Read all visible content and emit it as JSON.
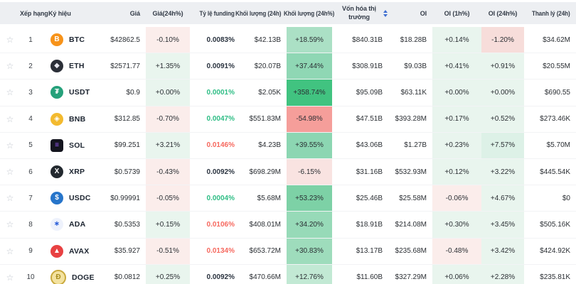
{
  "header": {
    "columns": [
      {
        "label": ""
      },
      {
        "label": "Xếp hạng"
      },
      {
        "label": "Ký hiệu"
      },
      {
        "label": "Giá"
      },
      {
        "label": "Giá(24h%)"
      },
      {
        "label": "Tỷ lệ funding"
      },
      {
        "label": "Khối lượng (24h)"
      },
      {
        "label": "Khối lượng (24h%)"
      },
      {
        "label": "Vốn hóa thị trường"
      },
      {
        "label": "OI"
      },
      {
        "label": "OI (1h%)"
      },
      {
        "label": "OI (24h%)"
      },
      {
        "label": "Thanh lý (24h)"
      }
    ],
    "sorted_column": "Vốn hóa thị trường"
  },
  "icons": {
    "favorite": "☆",
    "sort": "sort-arrows"
  },
  "colors": {
    "header_bg": "#edeff2",
    "tint_green": "#e9f5ee",
    "tint_red": "#fbedeb",
    "funding_green": "#2ebd85",
    "funding_red": "#f6685e",
    "funding_neutral": "#2b3440",
    "strong_green": "#41c380",
    "strong_red": "#f59e9a"
  },
  "rows": [
    {
      "rank": "1",
      "symbol": "BTC",
      "icon": {
        "name": "btc-icon",
        "glyph": "B",
        "bg": "#f7931a",
        "fg": "#ffffff"
      },
      "price": "$42862.5",
      "chg24h": {
        "text": "-0.10%",
        "bg": "#fbedeb"
      },
      "funding": {
        "text": "0.0083%",
        "color": "#2b3440"
      },
      "vol24h": "$42.13B",
      "vol24hPct": {
        "text": "+18.59%",
        "bg": "#abe0c5"
      },
      "mktcap": "$840.31B",
      "oi": "$18.28B",
      "oi1h": {
        "text": "+0.14%",
        "bg": "#e9f5ee"
      },
      "oi24h": {
        "text": "-1.20%",
        "bg": "#f7ddda"
      },
      "liq": "$34.62M"
    },
    {
      "rank": "2",
      "symbol": "ETH",
      "icon": {
        "name": "eth-icon",
        "glyph": "◆",
        "bg": "#2b2f38",
        "fg": "#e8e8f0"
      },
      "price": "$2571.77",
      "chg24h": {
        "text": "+1.35%",
        "bg": "#e9f5ee"
      },
      "funding": {
        "text": "0.0091%",
        "color": "#2b3440"
      },
      "vol24h": "$20.07B",
      "vol24hPct": {
        "text": "+37.44%",
        "bg": "#8fd7b4"
      },
      "mktcap": "$308.91B",
      "oi": "$9.03B",
      "oi1h": {
        "text": "+0.41%",
        "bg": "#e9f5ee"
      },
      "oi24h": {
        "text": "+0.91%",
        "bg": "#e9f5ee"
      },
      "liq": "$20.55M"
    },
    {
      "rank": "3",
      "symbol": "USDT",
      "icon": {
        "name": "usdt-icon",
        "glyph": "₮",
        "bg": "#26a17b",
        "fg": "#ffffff"
      },
      "price": "$0.9",
      "chg24h": {
        "text": "+0.00%",
        "bg": "#e9f5ee"
      },
      "funding": {
        "text": "0.0001%",
        "color": "#2ebd85"
      },
      "vol24h": "$2.05K",
      "vol24hPct": {
        "text": "+358.74%",
        "bg": "#41c380"
      },
      "mktcap": "$95.09B",
      "oi": "$63.11K",
      "oi1h": {
        "text": "+0.00%",
        "bg": "#e9f5ee"
      },
      "oi24h": {
        "text": "+0.00%",
        "bg": "#e9f5ee"
      },
      "liq": "$690.55"
    },
    {
      "rank": "4",
      "symbol": "BNB",
      "icon": {
        "name": "bnb-icon",
        "glyph": "◈",
        "bg": "#f3ba2f",
        "fg": "#ffffff"
      },
      "price": "$312.85",
      "chg24h": {
        "text": "-0.70%",
        "bg": "#fbedeb"
      },
      "funding": {
        "text": "0.0047%",
        "color": "#2ebd85"
      },
      "vol24h": "$551.83M",
      "vol24hPct": {
        "text": "-54.98%",
        "bg": "#f59e9a"
      },
      "mktcap": "$47.51B",
      "oi": "$393.28M",
      "oi1h": {
        "text": "+0.17%",
        "bg": "#e9f5ee"
      },
      "oi24h": {
        "text": "+0.52%",
        "bg": "#e9f5ee"
      },
      "liq": "$273.46K"
    },
    {
      "rank": "5",
      "symbol": "SOL",
      "icon": {
        "name": "sol-icon",
        "glyph": "≡",
        "bg": "#14151f",
        "fg": "#9d5cff",
        "shape": "square"
      },
      "price": "$99.251",
      "chg24h": {
        "text": "+3.21%",
        "bg": "#e9f5ee"
      },
      "funding": {
        "text": "0.0146%",
        "color": "#f6685e"
      },
      "vol24h": "$4.23B",
      "vol24hPct": {
        "text": "+39.55%",
        "bg": "#8cd6b2"
      },
      "mktcap": "$43.06B",
      "oi": "$1.27B",
      "oi1h": {
        "text": "+0.23%",
        "bg": "#e9f5ee"
      },
      "oi24h": {
        "text": "+7.57%",
        "bg": "#ddf1e7"
      },
      "liq": "$5.70M"
    },
    {
      "rank": "6",
      "symbol": "XRP",
      "icon": {
        "name": "xrp-icon",
        "glyph": "X",
        "bg": "#23292f",
        "fg": "#ffffff"
      },
      "price": "$0.5739",
      "chg24h": {
        "text": "-0.43%",
        "bg": "#fbedeb"
      },
      "funding": {
        "text": "0.0092%",
        "color": "#2b3440"
      },
      "vol24h": "$698.29M",
      "vol24hPct": {
        "text": "-6.15%",
        "bg": "#f9e3e1"
      },
      "mktcap": "$31.16B",
      "oi": "$532.93M",
      "oi1h": {
        "text": "+0.12%",
        "bg": "#e9f5ee"
      },
      "oi24h": {
        "text": "+3.22%",
        "bg": "#e9f5ee"
      },
      "liq": "$445.54K"
    },
    {
      "rank": "7",
      "symbol": "USDC",
      "icon": {
        "name": "usdc-icon",
        "glyph": "$",
        "bg": "#2775ca",
        "fg": "#ffffff"
      },
      "price": "$0.99991",
      "chg24h": {
        "text": "-0.05%",
        "bg": "#fbedeb"
      },
      "funding": {
        "text": "0.0004%",
        "color": "#2ebd85"
      },
      "vol24h": "$5.68M",
      "vol24hPct": {
        "text": "+53.23%",
        "bg": "#7dd1a6"
      },
      "mktcap": "$25.46B",
      "oi": "$25.58M",
      "oi1h": {
        "text": "-0.06%",
        "bg": "#fbedeb"
      },
      "oi24h": {
        "text": "+4.67%",
        "bg": "#e9f5ee"
      },
      "liq": "$0"
    },
    {
      "rank": "8",
      "symbol": "ADA",
      "icon": {
        "name": "ada-icon",
        "glyph": "∗",
        "bg": "#eef2fc",
        "fg": "#2a5ed9"
      },
      "price": "$0.5353",
      "chg24h": {
        "text": "+0.15%",
        "bg": "#e9f5ee"
      },
      "funding": {
        "text": "0.0106%",
        "color": "#f6685e"
      },
      "vol24h": "$408.01M",
      "vol24hPct": {
        "text": "+34.20%",
        "bg": "#97dab8"
      },
      "mktcap": "$18.91B",
      "oi": "$214.08M",
      "oi1h": {
        "text": "+0.30%",
        "bg": "#e9f5ee"
      },
      "oi24h": {
        "text": "+3.45%",
        "bg": "#e9f5ee"
      },
      "liq": "$505.16K"
    },
    {
      "rank": "9",
      "symbol": "AVAX",
      "icon": {
        "name": "avax-icon",
        "glyph": "▲",
        "bg": "#e84142",
        "fg": "#ffffff"
      },
      "price": "$35.927",
      "chg24h": {
        "text": "-0.51%",
        "bg": "#fbedeb"
      },
      "funding": {
        "text": "0.0134%",
        "color": "#f6685e"
      },
      "vol24h": "$653.72M",
      "vol24hPct": {
        "text": "+30.83%",
        "bg": "#9edcbc"
      },
      "mktcap": "$13.17B",
      "oi": "$235.68M",
      "oi1h": {
        "text": "-0.48%",
        "bg": "#fbedeb"
      },
      "oi24h": {
        "text": "+3.42%",
        "bg": "#e9f5ee"
      },
      "liq": "$424.92K"
    },
    {
      "rank": "10",
      "symbol": "DOGE",
      "icon": {
        "name": "doge-icon",
        "glyph": "Ð",
        "bg": "#f3e2a0",
        "fg": "#a98e20",
        "border": "#c9a93c"
      },
      "price": "$0.0812",
      "chg24h": {
        "text": "+0.25%",
        "bg": "#e9f5ee"
      },
      "funding": {
        "text": "0.0092%",
        "color": "#2b3440"
      },
      "vol24h": "$470.66M",
      "vol24hPct": {
        "text": "+12.76%",
        "bg": "#c2e9d4"
      },
      "mktcap": "$11.60B",
      "oi": "$327.29M",
      "oi1h": {
        "text": "+0.06%",
        "bg": "#e9f5ee"
      },
      "oi24h": {
        "text": "+2.28%",
        "bg": "#e9f5ee"
      },
      "liq": "$235.81K"
    }
  ]
}
